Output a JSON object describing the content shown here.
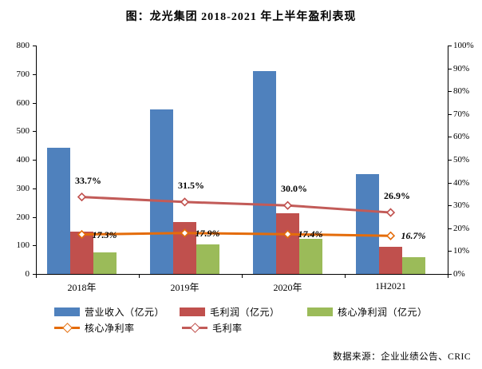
{
  "title": "图：龙光集团 2018-2021 年上半年盈利表现",
  "source": "数据来源：企业业绩公告、CRIC",
  "colors": {
    "revenue_bar": "#4F81BD",
    "gross_profit_bar": "#C0504D",
    "core_profit_bar": "#9BBB59",
    "core_margin_line": "#E46C0A",
    "gross_margin_line": "#C25B58",
    "axis": "#000000",
    "text": "#000000"
  },
  "chart_data": {
    "type": "bar+line combo",
    "title": "图：龙光集团 2018-2021 年上半年盈利表现",
    "categories": [
      "2018年",
      "2019年",
      "2020年",
      "1H2021"
    ],
    "bar_series": [
      {
        "name": "营业收入（亿元）",
        "color": "#4F81BD",
        "values": [
          441,
          575,
          711,
          349
        ]
      },
      {
        "name": "毛利润（亿元）",
        "color": "#C0504D",
        "values": [
          149,
          181,
          213,
          94
        ]
      },
      {
        "name": "核心净利润（亿元）",
        "color": "#9BBB59",
        "values": [
          76,
          103,
          124,
          58
        ]
      }
    ],
    "line_series": [
      {
        "name": "核心净利率",
        "color": "#E46C0A",
        "values": [
          17.3,
          17.9,
          17.4,
          16.7
        ],
        "labels": [
          "17.3%",
          "17.9%",
          "17.4%",
          "16.7%"
        ],
        "labels_italic": true,
        "label_anchor": "right"
      },
      {
        "name": "毛利率",
        "color": "#C25B58",
        "marker_color": "#C0504D",
        "values": [
          33.7,
          31.5,
          30.0,
          26.9
        ],
        "labels": [
          "33.7%",
          "31.5%",
          "30.0%",
          "26.9%"
        ],
        "labels_italic": false,
        "label_anchor": "above"
      }
    ],
    "left_axis": {
      "min": 0,
      "max": 800,
      "step": 100,
      "ticks": [
        "0",
        "100",
        "200",
        "300",
        "400",
        "500",
        "600",
        "700",
        "800"
      ]
    },
    "right_axis": {
      "min": 0,
      "max": 100,
      "step": 10,
      "ticks": [
        "0%",
        "10%",
        "20%",
        "30%",
        "40%",
        "50%",
        "60%",
        "70%",
        "80%",
        "90%",
        "100%"
      ]
    },
    "grid": false,
    "legend_position": "bottom"
  }
}
